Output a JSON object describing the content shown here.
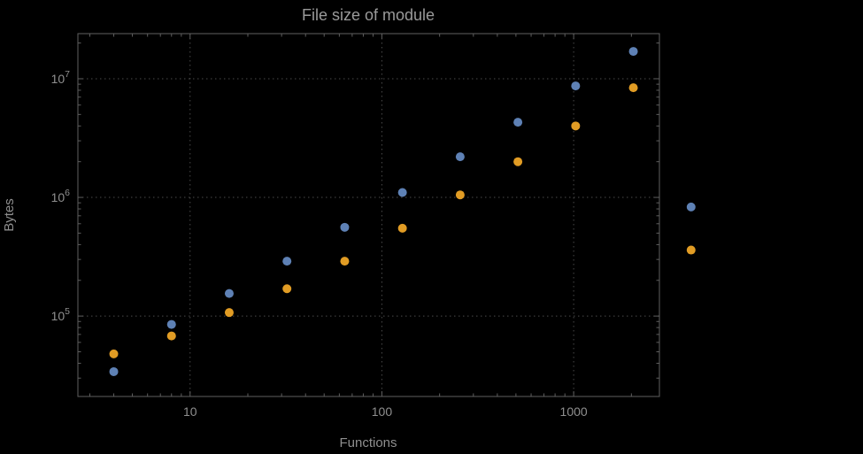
{
  "page": {
    "background": "#000000"
  },
  "chart_data": {
    "type": "scatter",
    "title": "File size of module",
    "xlabel": "Functions",
    "ylabel": "Bytes",
    "xscale": "log",
    "yscale": "log",
    "xlim": [
      2.6,
      2800
    ],
    "ylim": [
      21000,
      24000000
    ],
    "x_ticks": {
      "values": [
        10,
        100,
        1000
      ],
      "labels": [
        "10",
        "100",
        "1000"
      ]
    },
    "y_ticks": {
      "values": [
        100000,
        1000000,
        10000000
      ],
      "labels": [
        "10^5",
        "10^6",
        "10^7"
      ]
    },
    "grid": "dotted-at-major-ticks",
    "legend": "none",
    "series": [
      {
        "name": "blue",
        "color": "#5e81b5",
        "points": [
          [
            4,
            34000
          ],
          [
            8,
            85000
          ],
          [
            16,
            155000
          ],
          [
            32,
            290000
          ],
          [
            64,
            560000
          ],
          [
            128,
            1100000
          ],
          [
            256,
            2200000
          ],
          [
            512,
            4300000
          ],
          [
            1024,
            8700000
          ],
          [
            2048,
            17000000
          ],
          [
            4096,
            830000
          ]
        ]
      },
      {
        "name": "orange",
        "color": "#e19c24",
        "points": [
          [
            4,
            48000
          ],
          [
            8,
            68000
          ],
          [
            16,
            107000
          ],
          [
            32,
            170000
          ],
          [
            64,
            290000
          ],
          [
            128,
            550000
          ],
          [
            256,
            1050000
          ],
          [
            512,
            2000000
          ],
          [
            1024,
            4000000
          ],
          [
            2048,
            8400000
          ],
          [
            4096,
            360000
          ]
        ]
      }
    ],
    "colors": {
      "background": "#000000",
      "text": "#8f8f8f",
      "frame": "#5f5f5f",
      "grid": "#4a4a4a"
    }
  }
}
